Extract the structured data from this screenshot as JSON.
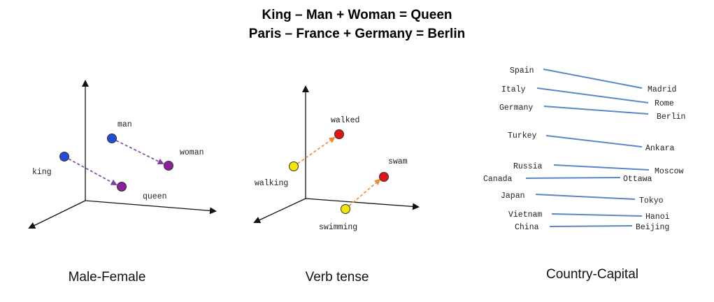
{
  "titles": {
    "line1": "King – Man + Woman = Queen",
    "line2": "Paris – France + Germany = Berlin"
  },
  "panels": [
    {
      "caption": "Male-Female",
      "words": {
        "man": "man",
        "woman": "woman",
        "king": "king",
        "queen": "queen"
      },
      "colors": {
        "male": "#1f4fd8",
        "female": "#8e1f9c",
        "arrow": "#7b3fa6"
      }
    },
    {
      "caption": "Verb tense",
      "words": {
        "walked": "walked",
        "walking": "walking",
        "swam": "swam",
        "swimming": "swimming"
      },
      "colors": {
        "present": "#f2e600",
        "past": "#e01515",
        "arrow": "#f08a2c"
      }
    },
    {
      "caption": "Country-Capital",
      "pairs": [
        {
          "country": "Spain",
          "capital": "Madrid"
        },
        {
          "country": "Italy",
          "capital": "Rome"
        },
        {
          "country": "Germany",
          "capital": "Berlin"
        },
        {
          "country": "Turkey",
          "capital": "Ankara"
        },
        {
          "country": "Russia",
          "capital": "Moscow"
        },
        {
          "country": "Canada",
          "capital": "Ottawa"
        },
        {
          "country": "Japan",
          "capital": "Tokyo"
        },
        {
          "country": "Vietnam",
          "capital": "Hanoi"
        },
        {
          "country": "China",
          "capital": "Beijing"
        }
      ],
      "colors": {
        "line": "#5b86c8"
      }
    }
  ]
}
